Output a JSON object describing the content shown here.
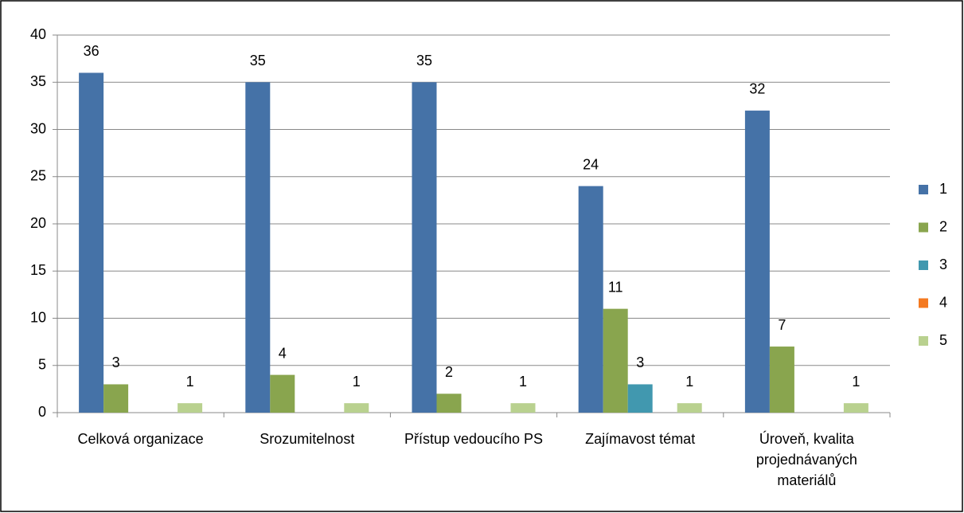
{
  "chart_data": {
    "type": "bar",
    "categories": [
      "Celková organizace",
      "Srozumitelnost",
      "Přístup vedoucího PS",
      "Zajímavost témat",
      "Úroveň, kvalita projednávaných materiálů"
    ],
    "series": [
      {
        "name": "1",
        "color": "#4572a7",
        "values": [
          36,
          35,
          35,
          24,
          32
        ]
      },
      {
        "name": "2",
        "color": "#89a54e",
        "values": [
          3,
          4,
          2,
          11,
          7
        ]
      },
      {
        "name": "3",
        "color": "#4198af",
        "values": [
          0,
          0,
          0,
          3,
          0
        ]
      },
      {
        "name": "4",
        "color": "#f47920",
        "values": [
          0,
          0,
          0,
          0,
          0
        ]
      },
      {
        "name": "5",
        "color": "#b9d18f",
        "values": [
          1,
          1,
          1,
          1,
          1
        ]
      }
    ],
    "ylim": [
      0,
      40
    ],
    "yticks": [
      0,
      5,
      10,
      15,
      20,
      25,
      30,
      35,
      40
    ],
    "grid": true,
    "legend": "right"
  }
}
